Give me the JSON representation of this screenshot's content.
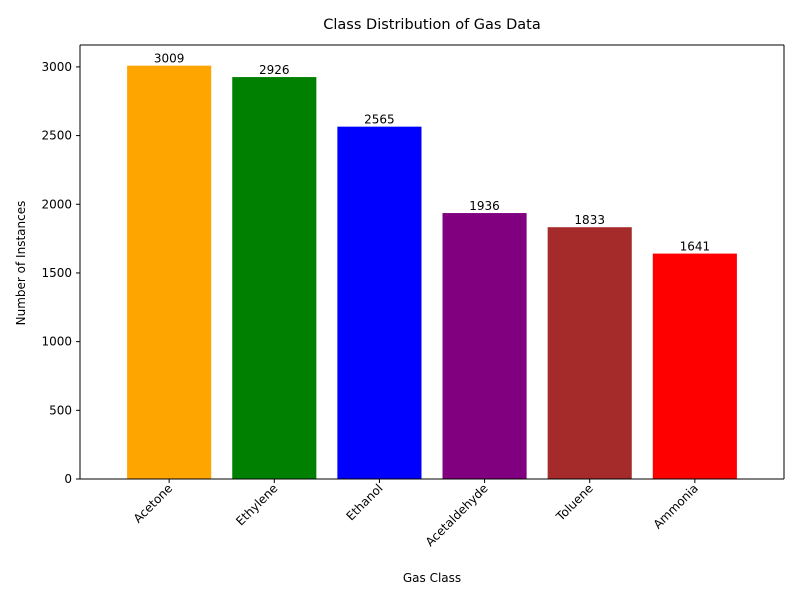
{
  "chart_data": {
    "type": "bar",
    "title": "Class Distribution of Gas Data",
    "xlabel": "Gas Class",
    "ylabel": "Number of Instances",
    "categories": [
      "Acetone",
      "Ethylene",
      "Ethanol",
      "Acetaldehyde",
      "Toluene",
      "Ammonia"
    ],
    "values": [
      3009,
      2926,
      2565,
      1936,
      1833,
      1641
    ],
    "data_labels": [
      "3009",
      "2926",
      "2565",
      "1936",
      "1833",
      "1641"
    ],
    "colors": [
      "#ffa500",
      "#008000",
      "#0000ff",
      "#800080",
      "#a52a2a",
      "#ff0000"
    ],
    "ylim": [
      0,
      3159.45
    ],
    "yticks": [
      0,
      500,
      1000,
      1500,
      2000,
      2500,
      3000
    ],
    "ytick_labels": [
      "0",
      "500",
      "1000",
      "1500",
      "2000",
      "2500",
      "3000"
    ],
    "xtick_rotation_deg": 45,
    "grid": false,
    "legend": "none"
  }
}
